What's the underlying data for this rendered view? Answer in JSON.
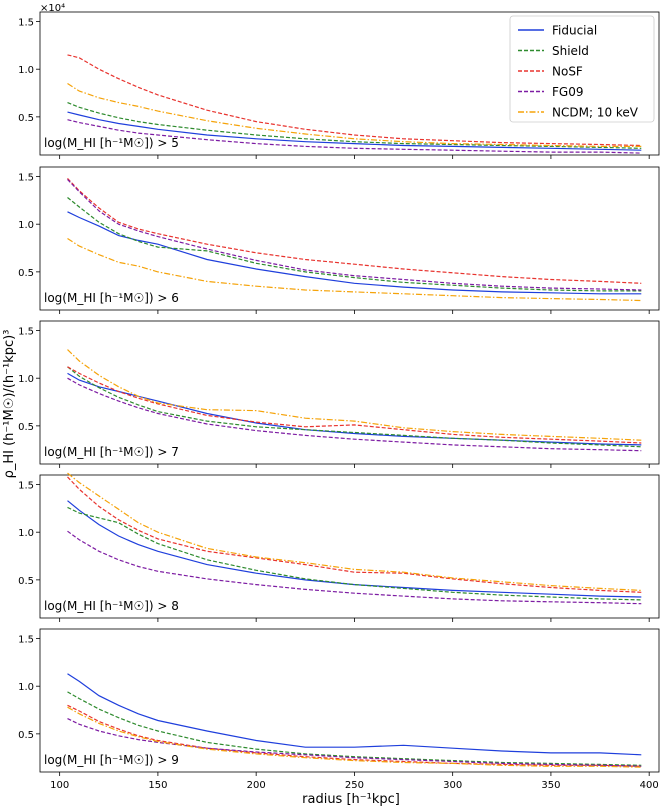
{
  "chart_data": {
    "type": "line",
    "ylabel": "ρ_HI (h⁻¹M☉)/(h⁻¹kpc)³",
    "xlabel": "radius [h⁻¹kpc]",
    "xlim": [
      90,
      405
    ],
    "ylim": [
      0.1,
      1.6
    ],
    "x_ticks": [
      100,
      150,
      200,
      250,
      300,
      350,
      400
    ],
    "y_ticks": [
      0.5,
      1.0,
      1.5
    ],
    "scale_label": "×10⁴",
    "grid": false,
    "legend_location": "top-right",
    "series_styles": [
      {
        "name": "Fiducial",
        "color": "#1f3fdc",
        "dash": ""
      },
      {
        "name": "Shield",
        "color": "#2e8b2e",
        "dash": "4,2"
      },
      {
        "name": "NoSF",
        "color": "#e8332e",
        "dash": "4,2"
      },
      {
        "name": "FG09",
        "color": "#7d1ca3",
        "dash": "4,2"
      },
      {
        "name": "NCDM; 10 keV",
        "color": "#f5a30a",
        "dash": "6,2,1.5,2"
      }
    ],
    "x": [
      104,
      110,
      120,
      130,
      140,
      150,
      175,
      200,
      225,
      250,
      275,
      300,
      325,
      350,
      375,
      396
    ],
    "panels": [
      {
        "label": "log(M_HI [h⁻¹M☉]) > 5",
        "series": [
          {
            "name": "Fiducial",
            "values": [
              0.55,
              0.52,
              0.47,
              0.43,
              0.4,
              0.37,
              0.31,
              0.27,
              0.24,
              0.22,
              0.2,
              0.19,
              0.18,
              0.17,
              0.16,
              0.15
            ]
          },
          {
            "name": "Shield",
            "values": [
              0.65,
              0.6,
              0.54,
              0.49,
              0.45,
              0.42,
              0.36,
              0.31,
              0.27,
              0.24,
              0.22,
              0.21,
              0.2,
              0.19,
              0.18,
              0.17
            ]
          },
          {
            "name": "NoSF",
            "values": [
              1.15,
              1.12,
              1.0,
              0.9,
              0.81,
              0.73,
              0.57,
              0.45,
              0.37,
              0.31,
              0.27,
              0.25,
              0.23,
              0.22,
              0.21,
              0.2
            ]
          },
          {
            "name": "FG09",
            "values": [
              0.47,
              0.44,
              0.4,
              0.36,
              0.33,
              0.31,
              0.26,
              0.22,
              0.19,
              0.17,
              0.16,
              0.15,
              0.14,
              0.13,
              0.13,
              0.12
            ]
          },
          {
            "name": "NCDM; 10 keV",
            "values": [
              0.85,
              0.77,
              0.7,
              0.65,
              0.61,
              0.56,
              0.46,
              0.38,
              0.32,
              0.27,
              0.24,
              0.22,
              0.21,
              0.2,
              0.19,
              0.19
            ]
          }
        ]
      },
      {
        "label": "log(M_HI [h⁻¹M☉]) > 6",
        "series": [
          {
            "name": "Fiducial",
            "values": [
              1.13,
              1.07,
              0.98,
              0.88,
              0.83,
              0.79,
              0.63,
              0.53,
              0.45,
              0.38,
              0.34,
              0.31,
              0.29,
              0.28,
              0.27,
              0.27
            ]
          },
          {
            "name": "Shield",
            "values": [
              1.28,
              1.18,
              1.02,
              0.9,
              0.82,
              0.76,
              0.72,
              0.59,
              0.5,
              0.44,
              0.39,
              0.36,
              0.33,
              0.31,
              0.3,
              0.3
            ]
          },
          {
            "name": "NoSF",
            "values": [
              1.48,
              1.35,
              1.17,
              1.02,
              0.95,
              0.9,
              0.79,
              0.7,
              0.63,
              0.58,
              0.53,
              0.49,
              0.45,
              0.42,
              0.4,
              0.38
            ]
          },
          {
            "name": "FG09",
            "values": [
              1.47,
              1.34,
              1.14,
              1.0,
              0.93,
              0.87,
              0.74,
              0.62,
              0.52,
              0.46,
              0.42,
              0.38,
              0.35,
              0.33,
              0.32,
              0.31
            ]
          },
          {
            "name": "NCDM; 10 keV",
            "values": [
              0.85,
              0.77,
              0.68,
              0.6,
              0.56,
              0.5,
              0.4,
              0.35,
              0.31,
              0.29,
              0.27,
              0.25,
              0.23,
              0.22,
              0.21,
              0.2
            ]
          }
        ]
      },
      {
        "label": "log(M_HI [h⁻¹M☉]) > 7",
        "series": [
          {
            "name": "Fiducial",
            "values": [
              1.05,
              0.98,
              0.91,
              0.86,
              0.81,
              0.76,
              0.63,
              0.53,
              0.46,
              0.42,
              0.39,
              0.37,
              0.35,
              0.33,
              0.31,
              0.3
            ]
          },
          {
            "name": "Shield",
            "values": [
              1.12,
              1.02,
              0.9,
              0.8,
              0.72,
              0.65,
              0.55,
              0.49,
              0.46,
              0.43,
              0.4,
              0.37,
              0.35,
              0.32,
              0.3,
              0.28
            ]
          },
          {
            "name": "NoSF",
            "values": [
              1.12,
              1.05,
              0.95,
              0.86,
              0.79,
              0.73,
              0.61,
              0.54,
              0.49,
              0.51,
              0.46,
              0.41,
              0.38,
              0.36,
              0.34,
              0.32
            ]
          },
          {
            "name": "FG09",
            "values": [
              1.0,
              0.93,
              0.84,
              0.76,
              0.69,
              0.63,
              0.52,
              0.45,
              0.4,
              0.36,
              0.33,
              0.3,
              0.28,
              0.26,
              0.25,
              0.24
            ]
          },
          {
            "name": "NCDM; 10 keV",
            "values": [
              1.3,
              1.18,
              1.03,
              0.91,
              0.81,
              0.74,
              0.67,
              0.66,
              0.58,
              0.55,
              0.48,
              0.44,
              0.41,
              0.39,
              0.37,
              0.35
            ]
          }
        ]
      },
      {
        "label": "log(M_HI [h⁻¹M☉]) > 8",
        "series": [
          {
            "name": "Fiducial",
            "values": [
              1.33,
              1.23,
              1.08,
              0.96,
              0.87,
              0.8,
              0.66,
              0.57,
              0.5,
              0.45,
              0.42,
              0.39,
              0.37,
              0.35,
              0.33,
              0.32
            ]
          },
          {
            "name": "Shield",
            "values": [
              1.26,
              1.2,
              1.15,
              1.1,
              0.98,
              0.88,
              0.71,
              0.6,
              0.51,
              0.45,
              0.41,
              0.37,
              0.34,
              0.32,
              0.3,
              0.29
            ]
          },
          {
            "name": "NoSF",
            "values": [
              1.58,
              1.45,
              1.27,
              1.13,
              1.02,
              0.93,
              0.8,
              0.73,
              0.66,
              0.58,
              0.57,
              0.51,
              0.46,
              0.42,
              0.39,
              0.37
            ]
          },
          {
            "name": "FG09",
            "values": [
              1.01,
              0.92,
              0.8,
              0.71,
              0.64,
              0.59,
              0.51,
              0.45,
              0.4,
              0.36,
              0.33,
              0.3,
              0.28,
              0.27,
              0.26,
              0.25
            ]
          },
          {
            "name": "NCDM; 10 keV",
            "values": [
              1.62,
              1.52,
              1.38,
              1.24,
              1.1,
              1.0,
              0.83,
              0.74,
              0.68,
              0.61,
              0.58,
              0.52,
              0.48,
              0.44,
              0.41,
              0.39
            ]
          }
        ]
      },
      {
        "label": "log(M_HI [h⁻¹M☉]) > 9",
        "series": [
          {
            "name": "Fiducial",
            "values": [
              1.13,
              1.05,
              0.9,
              0.8,
              0.71,
              0.64,
              0.53,
              0.43,
              0.36,
              0.36,
              0.38,
              0.35,
              0.32,
              0.3,
              0.3,
              0.28
            ]
          },
          {
            "name": "Shield",
            "values": [
              0.94,
              0.87,
              0.76,
              0.67,
              0.59,
              0.53,
              0.41,
              0.34,
              0.29,
              0.26,
              0.24,
              0.22,
              0.2,
              0.19,
              0.18,
              0.17
            ]
          },
          {
            "name": "NoSF",
            "values": [
              0.8,
              0.74,
              0.63,
              0.55,
              0.48,
              0.43,
              0.35,
              0.3,
              0.26,
              0.23,
              0.21,
              0.19,
              0.18,
              0.17,
              0.17,
              0.16
            ]
          },
          {
            "name": "FG09",
            "values": [
              0.66,
              0.6,
              0.53,
              0.48,
              0.44,
              0.41,
              0.35,
              0.31,
              0.28,
              0.25,
              0.23,
              0.21,
              0.19,
              0.18,
              0.17,
              0.16
            ]
          },
          {
            "name": "NCDM; 10 keV",
            "values": [
              0.78,
              0.71,
              0.61,
              0.53,
              0.47,
              0.42,
              0.34,
              0.29,
              0.25,
              0.22,
              0.2,
              0.19,
              0.17,
              0.16,
              0.16,
              0.15
            ]
          }
        ]
      }
    ]
  }
}
